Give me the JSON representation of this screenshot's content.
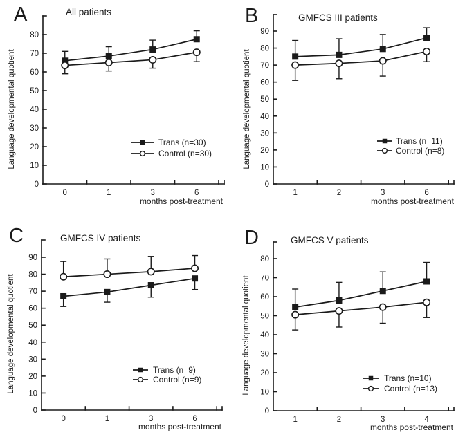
{
  "figure": {
    "background": "#ffffff",
    "ink": "#1a1a1a"
  },
  "chart_data": [
    {
      "type": "line",
      "panel_label": "A",
      "title": "All patients",
      "xlabel": "months post-treatment",
      "ylabel": "Language developmental quotient",
      "categories": [
        "0",
        "1",
        "3",
        "6"
      ],
      "yticks": [
        0,
        10,
        20,
        30,
        40,
        50,
        60,
        70,
        80
      ],
      "ylim": [
        0,
        80
      ],
      "grid": false,
      "legend_position": "lower right",
      "series": [
        {
          "name": "Trans (n=30)",
          "marker": "filled-square",
          "error_direction": "up",
          "values": [
            66,
            68.5,
            72,
            77.5
          ],
          "errors": [
            5,
            5,
            5,
            4.5
          ]
        },
        {
          "name": "Control (n=30)",
          "marker": "open-circle",
          "error_direction": "down",
          "values": [
            63.5,
            65,
            66.5,
            70.5
          ],
          "errors": [
            4.5,
            4.5,
            4.5,
            5
          ]
        }
      ]
    },
    {
      "type": "line",
      "panel_label": "B",
      "title": "GMFCS III patients",
      "xlabel": "months post-treatment",
      "ylabel": "Language developmental quotient",
      "categories": [
        "1",
        "2",
        "3",
        "6"
      ],
      "yticks": [
        0,
        10,
        20,
        30,
        40,
        50,
        60,
        70,
        80,
        90
      ],
      "ylim": [
        0,
        90
      ],
      "grid": false,
      "legend_position": "lower right",
      "series": [
        {
          "name": "Trans (n=11)",
          "marker": "filled-square",
          "error_direction": "up",
          "values": [
            75,
            76,
            79.5,
            86
          ],
          "errors": [
            9.5,
            9.5,
            8.5,
            6
          ]
        },
        {
          "name": "Control (n=8)",
          "marker": "open-circle",
          "error_direction": "down",
          "values": [
            70,
            71,
            72.5,
            78
          ],
          "errors": [
            9,
            9,
            9,
            6
          ]
        }
      ]
    },
    {
      "type": "line",
      "panel_label": "C",
      "title": "GMFCS IV patients",
      "xlabel": "months post-treatment",
      "ylabel": "Language developmental quotient",
      "categories": [
        "0",
        "1",
        "3",
        "6"
      ],
      "yticks": [
        0,
        10,
        20,
        30,
        40,
        50,
        60,
        70,
        80,
        90
      ],
      "ylim": [
        0,
        90
      ],
      "grid": false,
      "legend_position": "lower right",
      "series": [
        {
          "name": "Trans (n=9)",
          "marker": "filled-square",
          "error_direction": "down",
          "values": [
            67,
            69.5,
            73.5,
            77.5
          ],
          "errors": [
            6,
            6,
            7,
            6.5
          ]
        },
        {
          "name": "Control (n=9)",
          "marker": "open-circle",
          "error_direction": "up",
          "values": [
            78.5,
            80,
            81.5,
            83.5
          ],
          "errors": [
            9,
            9,
            9,
            7.5
          ]
        }
      ]
    },
    {
      "type": "line",
      "panel_label": "D",
      "title": "GMFCS V patients",
      "xlabel": "months post-treatment",
      "ylabel": "Language developmental quotient",
      "categories": [
        "1",
        "2",
        "3",
        "4"
      ],
      "yticks": [
        0,
        10,
        20,
        30,
        40,
        50,
        60,
        70,
        80
      ],
      "ylim": [
        0,
        80
      ],
      "grid": false,
      "legend_position": "lower right",
      "series": [
        {
          "name": "Trans (n=10)",
          "marker": "filled-square",
          "error_direction": "up",
          "values": [
            54.5,
            58,
            63,
            68
          ],
          "errors": [
            9.5,
            9.5,
            10,
            10
          ]
        },
        {
          "name": "Control (n=13)",
          "marker": "open-circle",
          "error_direction": "down",
          "values": [
            50.5,
            52.5,
            54.5,
            57
          ],
          "errors": [
            8,
            8.5,
            8.5,
            8
          ]
        }
      ]
    }
  ]
}
